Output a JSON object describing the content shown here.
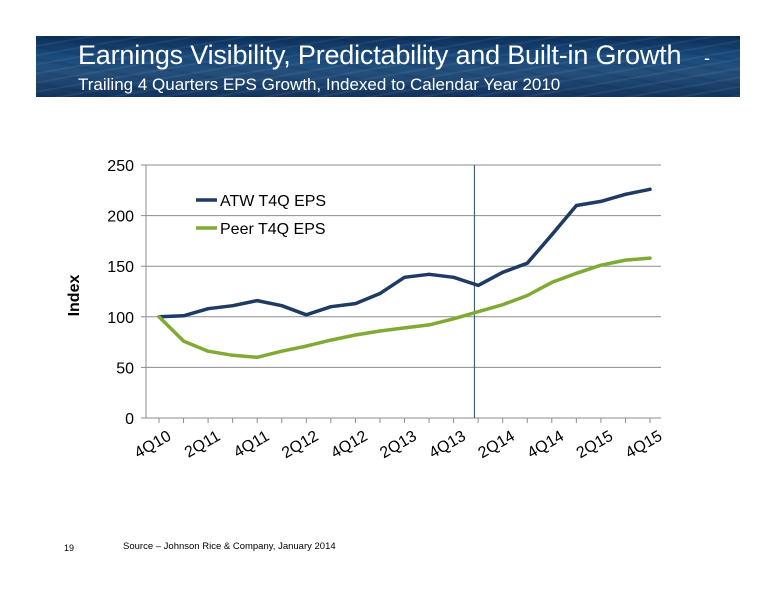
{
  "header": {
    "title": "Earnings Visibility, Predictability and Built-in Growth",
    "title_dash": "-",
    "subtitle": "Trailing 4 Quarters EPS Growth, Indexed to Calendar Year 2010"
  },
  "footer": {
    "page_number": "19",
    "source": "Source – Johnson Rice & Company, January 2014"
  },
  "colors": {
    "atw": "#1f3a63",
    "peer": "#7fab34",
    "grid": "#8c8c8c",
    "marker_line": "#4a5d78"
  },
  "chart_data": {
    "type": "line",
    "title": "",
    "ylabel": "Index",
    "xlabel": "",
    "ylim": [
      0,
      250
    ],
    "yticks": [
      0,
      50,
      100,
      150,
      200,
      250
    ],
    "grid": true,
    "legend_position": "top-left",
    "x": [
      "4Q10",
      "1Q11",
      "2Q11",
      "3Q11",
      "4Q11",
      "1Q12",
      "2Q12",
      "3Q12",
      "4Q12",
      "1Q13",
      "2Q13",
      "3Q13",
      "4Q13",
      "1Q14",
      "2Q14",
      "3Q14",
      "4Q14",
      "1Q15",
      "2Q15",
      "3Q15",
      "4Q15"
    ],
    "x_tick_labels": [
      "4Q10",
      "2Q11",
      "4Q11",
      "2Q12",
      "4Q12",
      "2Q13",
      "4Q13",
      "2Q14",
      "4Q14",
      "2Q15",
      "4Q15"
    ],
    "vertical_marker_x": "1Q14",
    "series": [
      {
        "name": "ATW T4Q EPS",
        "values": [
          100,
          101,
          108,
          111,
          116,
          111,
          102,
          110,
          113,
          123,
          139,
          142,
          139,
          131,
          144,
          153,
          181,
          210,
          214,
          221,
          226
        ]
      },
      {
        "name": "Peer T4Q EPS",
        "values": [
          100,
          76,
          66,
          62,
          60,
          66,
          71,
          77,
          82,
          86,
          89,
          92,
          98,
          105,
          112,
          121,
          134,
          143,
          151,
          156,
          158
        ]
      }
    ]
  }
}
